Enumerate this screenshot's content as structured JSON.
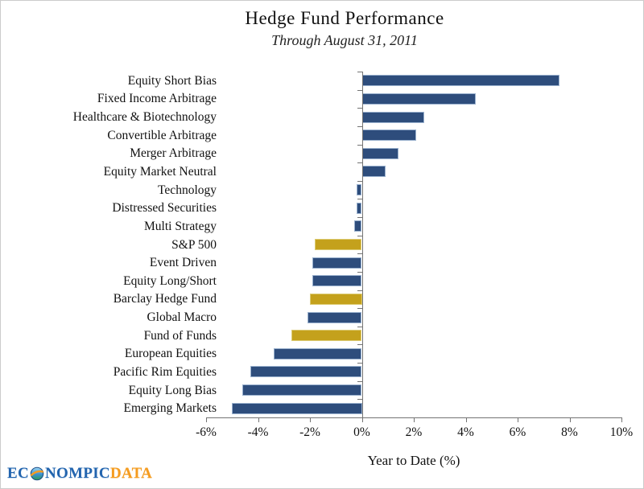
{
  "header": {
    "title": "Hedge Fund Performance",
    "subtitle": "Through August 31, 2011"
  },
  "chart_data": {
    "type": "bar",
    "orientation": "horizontal",
    "title": "Hedge Fund Performance",
    "subtitle": "Through August 31, 2011",
    "xlabel": "Year to Date (%)",
    "xlim": [
      -6,
      10
    ],
    "xtick_values": [
      -6,
      -4,
      -2,
      0,
      2,
      4,
      6,
      8,
      10
    ],
    "xtick_labels": [
      "-6%",
      "-4%",
      "-2%",
      "0%",
      "2%",
      "4%",
      "6%",
      "8%",
      "10%"
    ],
    "grid": false,
    "legend": "none",
    "categories": [
      "Equity Short Bias",
      "Fixed Income Arbitrage",
      "Healthcare & Biotechnology",
      "Convertible Arbitrage",
      "Merger Arbitrage",
      "Equity Market Neutral",
      "Technology",
      "Distressed Securities",
      "Multi Strategy",
      "S&P 500",
      "Event Driven",
      "Equity Long/Short",
      "Barclay Hedge Fund",
      "Global Macro",
      "Fund of Funds",
      "European Equities",
      "Pacific Rim Equities",
      "Equity Long Bias",
      "Emerging Markets"
    ],
    "values": [
      7.6,
      4.4,
      2.4,
      2.1,
      1.4,
      0.9,
      -0.2,
      -0.2,
      -0.3,
      -1.8,
      -1.9,
      -1.9,
      -2.0,
      -2.1,
      -2.7,
      -3.4,
      -4.3,
      -4.6,
      -5.0
    ],
    "highlighted_categories": [
      "S&P 500",
      "Barclay Hedge Fund",
      "Fund of Funds"
    ],
    "colors": {
      "bar_fill": "#2E4D7C",
      "bar_border": "#9AB1CE",
      "highlight_fill": "#C4A11C",
      "highlight_border": "#DCCB74",
      "axis": "#737373"
    }
  },
  "logo": {
    "text_left": "EC",
    "text_mid": "NOMPIC",
    "text_right": "DATA",
    "globe_icon": "globe-icon",
    "blue": "#2264AE",
    "orange": "#F59C20"
  }
}
